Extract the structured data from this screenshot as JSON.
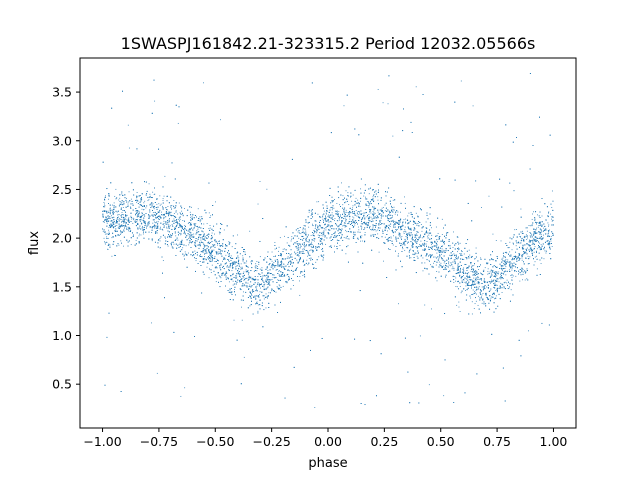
{
  "chart_data": {
    "type": "scatter",
    "title": "1SWASPJ161842.21-323315.2 Period 12032.05566s",
    "xlabel": "phase",
    "ylabel": "flux",
    "xlim": [
      -1.1,
      1.1
    ],
    "ylim": [
      0.05,
      3.85
    ],
    "x_ticks": [
      -1.0,
      -0.75,
      -0.5,
      -0.25,
      0.0,
      0.25,
      0.5,
      0.75,
      1.0
    ],
    "x_tick_labels": [
      "−1.00",
      "−0.75",
      "−0.50",
      "−0.25",
      "0.00",
      "0.25",
      "0.50",
      "0.75",
      "1.00"
    ],
    "y_ticks": [
      0.5,
      1.0,
      1.5,
      2.0,
      2.5,
      3.0,
      3.5
    ],
    "y_tick_labels": [
      "0.5",
      "1.0",
      "1.5",
      "2.0",
      "2.5",
      "3.0",
      "3.5"
    ],
    "grid": false,
    "legend": "none",
    "marker_color": "#1f77b4",
    "series": [
      {
        "x": [
          -1.0,
          -0.9,
          -0.8,
          -0.7,
          -0.6,
          -0.5,
          -0.4,
          -0.3,
          -0.2,
          -0.1,
          0.0,
          0.1,
          0.2,
          0.3,
          0.4,
          0.5,
          0.6,
          0.7,
          0.8,
          0.9,
          1.0
        ],
        "values": [
          2.15,
          2.2,
          2.25,
          2.15,
          2.05,
          1.85,
          1.65,
          1.5,
          1.7,
          1.95,
          2.1,
          2.2,
          2.25,
          2.15,
          2.0,
          1.85,
          1.65,
          1.5,
          1.7,
          1.95,
          2.1
        ]
      }
    ]
  }
}
